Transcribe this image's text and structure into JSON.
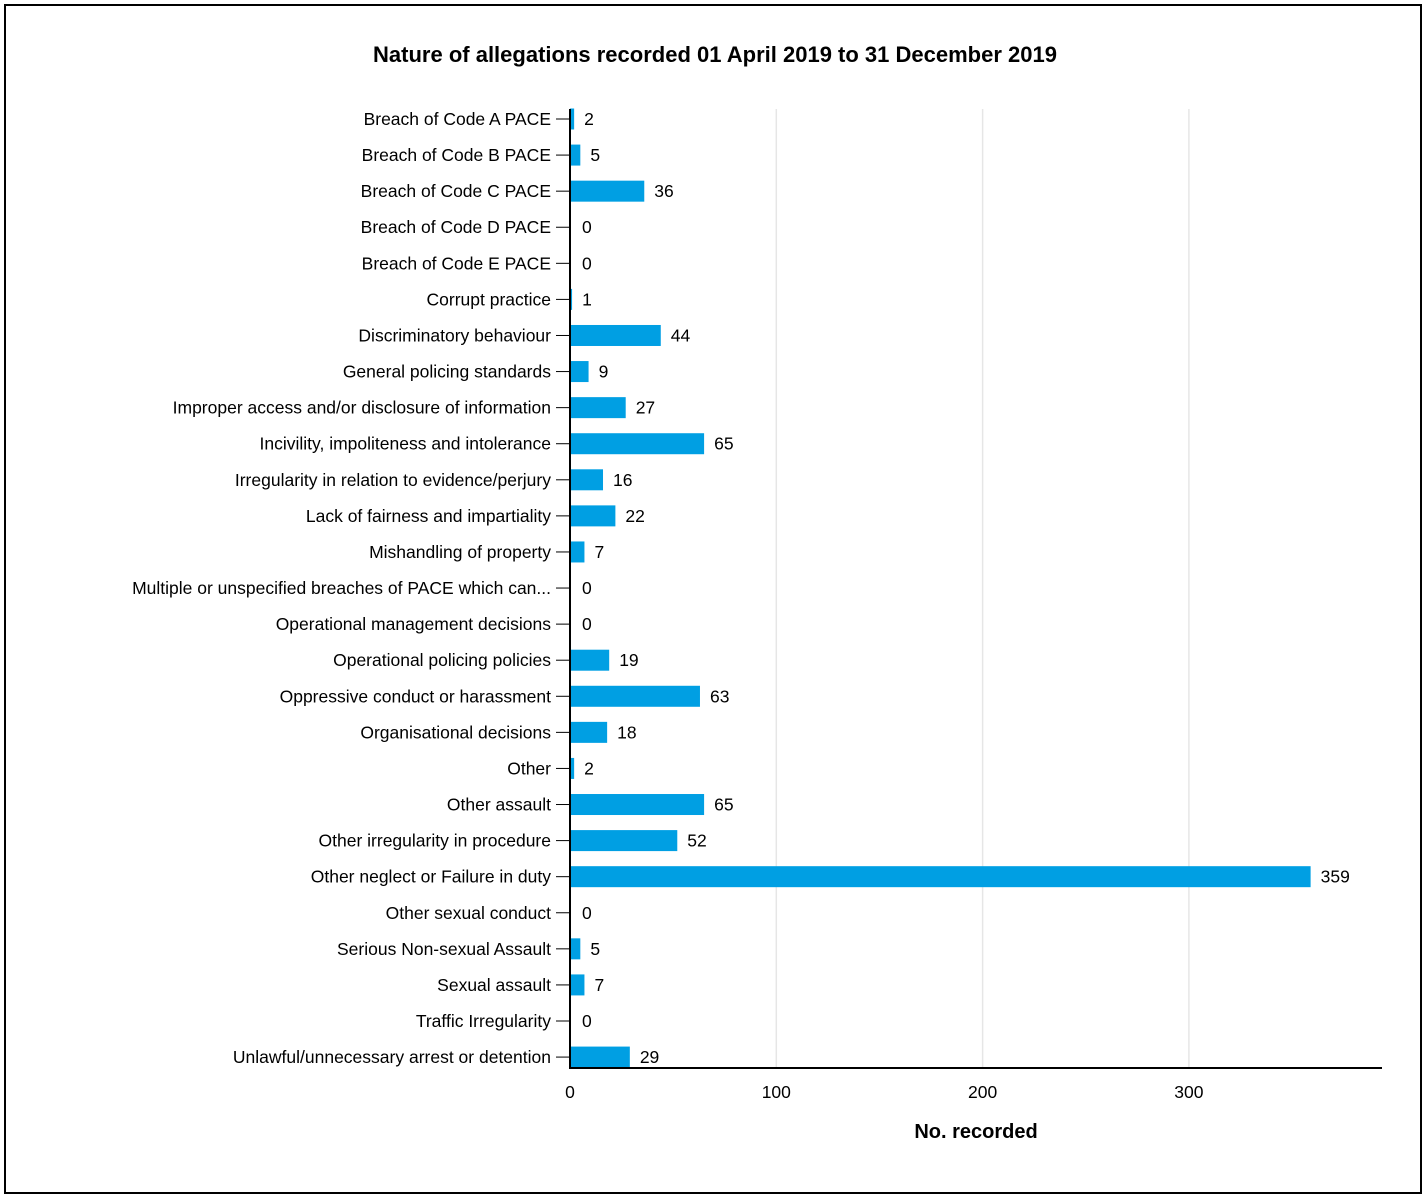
{
  "chart_data": {
    "type": "bar",
    "orientation": "horizontal",
    "title": "Nature of allegations recorded 01 April 2019 to 31 December 2019",
    "xlabel": "No. recorded",
    "ylabel": "",
    "xlim": [
      0,
      380
    ],
    "xticks": [
      0,
      100,
      200,
      300
    ],
    "grid": true,
    "bar_color": "#009fe3",
    "categories": [
      "Breach of Code A PACE",
      "Breach of Code B PACE",
      "Breach of Code C PACE",
      "Breach of Code D PACE",
      "Breach of Code E PACE",
      "Corrupt practice",
      "Discriminatory behaviour",
      "General policing standards",
      "Improper access and/or disclosure of information",
      "Incivility, impoliteness and intolerance",
      "Irregularity in relation to evidence/perjury",
      "Lack of fairness and impartiality",
      "Mishandling of property",
      "Multiple or unspecified breaches of PACE which can...",
      "Operational management decisions",
      "Operational policing policies",
      "Oppressive conduct or harassment",
      "Organisational decisions",
      "Other",
      "Other assault",
      "Other irregularity in procedure",
      "Other neglect or Failure in duty",
      "Other sexual conduct",
      "Serious Non-sexual Assault",
      "Sexual assault",
      "Traffic Irregularity",
      "Unlawful/unnecessary arrest or detention"
    ],
    "values": [
      2,
      5,
      36,
      0,
      0,
      1,
      44,
      9,
      27,
      65,
      16,
      22,
      7,
      0,
      0,
      19,
      63,
      18,
      2,
      65,
      52,
      359,
      0,
      5,
      7,
      0,
      29
    ]
  }
}
